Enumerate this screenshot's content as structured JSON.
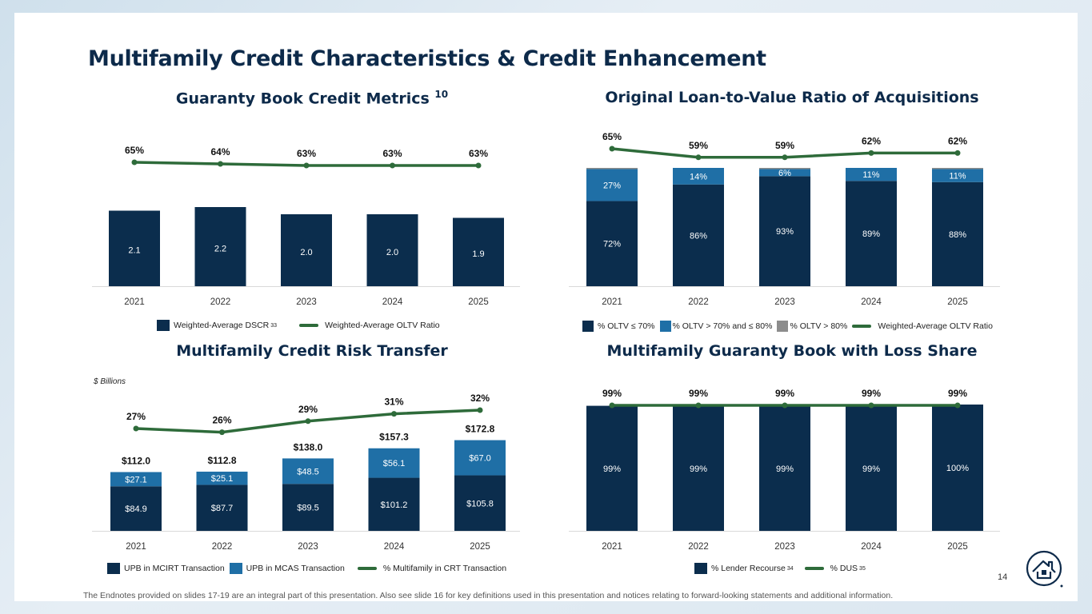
{
  "title": "Multifamily Credit Characteristics & Credit Enhancement",
  "colors": {
    "navy": "#0b2d4d",
    "blue": "#1f6fa6",
    "gray": "#8c8c8c",
    "green": "#2e6b3a",
    "title": "#0d2a4a"
  },
  "chart_data": [
    {
      "id": "guaranty-book-credit-metrics",
      "type": "bar",
      "title": "Guaranty Book Credit Metrics",
      "title_sup": "10",
      "categories": [
        "2021",
        "2022",
        "2023",
        "2024",
        "2025"
      ],
      "series": [
        {
          "name": "Weighted-Average DSCR",
          "sup": "33",
          "kind": "bar",
          "color": "#0b2d4d",
          "values": [
            2.1,
            2.2,
            2.0,
            2.0,
            1.9
          ],
          "labels": [
            "2.1",
            "2.2",
            "2.0",
            "2.0",
            "1.9"
          ]
        },
        {
          "name": "Weighted-Average OLTV Ratio",
          "kind": "line",
          "color": "#2e6b3a",
          "values": [
            65,
            64,
            63,
            63,
            63
          ],
          "labels": [
            "65%",
            "64%",
            "63%",
            "63%",
            "63%"
          ]
        }
      ],
      "legend_position": "bottom"
    },
    {
      "id": "original-ltv-acquisitions",
      "type": "bar",
      "stacked": true,
      "title": "Original Loan-to-Value Ratio of Acquisitions",
      "categories": [
        "2021",
        "2022",
        "2023",
        "2024",
        "2025"
      ],
      "series": [
        {
          "name": "% OLTV ≤ 70%",
          "kind": "bar",
          "color": "#0b2d4d",
          "values": [
            72,
            86,
            93,
            89,
            88
          ],
          "labels": [
            "72%",
            "86%",
            "93%",
            "89%",
            "88%"
          ]
        },
        {
          "name": "% OLTV > 70% and ≤ 80%",
          "kind": "bar",
          "color": "#1f6fa6",
          "values": [
            27,
            14,
            6,
            11,
            11
          ],
          "labels": [
            "27%",
            "14%",
            "6%",
            "11%",
            "11%"
          ]
        },
        {
          "name": "% OLTV > 80%",
          "kind": "bar",
          "color": "#8c8c8c",
          "values": [
            1,
            0,
            1,
            0,
            1
          ]
        },
        {
          "name": "Weighted-Average OLTV Ratio",
          "kind": "line",
          "color": "#2e6b3a",
          "values": [
            65,
            59,
            59,
            62,
            62
          ],
          "labels": [
            "65%",
            "59%",
            "59%",
            "62%",
            "62%"
          ]
        }
      ],
      "legend_position": "bottom"
    },
    {
      "id": "multifamily-credit-risk-transfer",
      "type": "bar",
      "stacked": true,
      "title": "Multifamily Credit Risk Transfer",
      "units": "$ Billions",
      "categories": [
        "2021",
        "2022",
        "2023",
        "2024",
        "2025"
      ],
      "totals": [
        "$112.0",
        "$112.8",
        "$138.0",
        "$157.3",
        "$172.8"
      ],
      "series": [
        {
          "name": "UPB in MCIRT Transaction",
          "kind": "bar",
          "color": "#0b2d4d",
          "values": [
            84.9,
            87.7,
            89.5,
            101.2,
            105.8
          ],
          "labels": [
            "$84.9",
            "$87.7",
            "$89.5",
            "$101.2",
            "$105.8"
          ]
        },
        {
          "name": "UPB in MCAS Transaction",
          "kind": "bar",
          "color": "#1f6fa6",
          "values": [
            27.1,
            25.1,
            48.5,
            56.1,
            67.0
          ],
          "labels": [
            "$27.1",
            "$25.1",
            "$48.5",
            "$56.1",
            "$67.0"
          ]
        },
        {
          "name": "% Multifamily in CRT Transaction",
          "kind": "line",
          "color": "#2e6b3a",
          "values": [
            27,
            26,
            29,
            31,
            32
          ],
          "labels": [
            "27%",
            "26%",
            "29%",
            "31%",
            "32%"
          ]
        }
      ],
      "legend_position": "bottom"
    },
    {
      "id": "guaranty-book-loss-share",
      "type": "bar",
      "title": "Multifamily Guaranty Book with Loss Share",
      "categories": [
        "2021",
        "2022",
        "2023",
        "2024",
        "2025"
      ],
      "series": [
        {
          "name": "% Lender Recourse",
          "sup": "34",
          "kind": "bar",
          "color": "#0b2d4d",
          "values": [
            99,
            99,
            99,
            99,
            100
          ],
          "labels": [
            "99%",
            "99%",
            "99%",
            "99%",
            "100%"
          ]
        },
        {
          "name": "% DUS",
          "sup": "35",
          "kind": "line",
          "color": "#2e6b3a",
          "values": [
            99,
            99,
            99,
            99,
            99
          ],
          "labels": [
            "99%",
            "99%",
            "99%",
            "99%",
            "99%"
          ]
        }
      ],
      "legend_position": "bottom"
    }
  ],
  "page_number": "14",
  "footnote": "The Endnotes provided on slides 17-19 are an integral part of this presentation. Also see slide 16 for key definitions used in this presentation and notices relating to forward-looking statements and additional information.",
  "logo_icon": "house-logo-icon"
}
